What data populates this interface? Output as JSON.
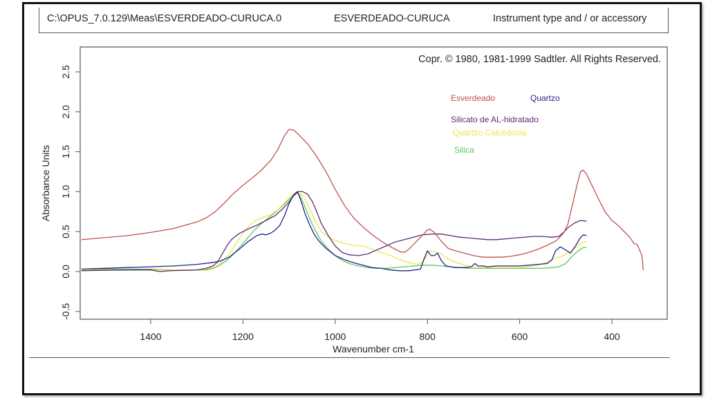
{
  "header": {
    "file_path": "C:\\OPUS_7.0.129\\Meas\\ESVERDEADO-CURUCA.0",
    "sample_name": "ESVERDEADO-CURUCA",
    "instrument": "Instrument type and / or accessory"
  },
  "chart_data": {
    "type": "line",
    "title": "",
    "copyright": "Copr. © 1980, 1981-1999 Sadtler.  All Rights Reserved.",
    "xlabel": "Wavenumber cm-1",
    "ylabel": "Absorbance Units",
    "xlim": [
      1550,
      330
    ],
    "ylim": [
      -0.6,
      2.8
    ],
    "x_reversed": true,
    "grid": false,
    "xticks": [
      1400,
      1200,
      1000,
      800,
      600,
      400
    ],
    "xtick_labels": [
      "1400",
      "1200",
      "1000",
      "800",
      "600",
      "400"
    ],
    "yticks": [
      -0.5,
      0.0,
      0.5,
      1.0,
      1.5,
      2.0,
      2.5
    ],
    "ytick_labels": [
      "-0.5",
      "0.0",
      "0.5",
      "1.0",
      "1.5",
      "2.0",
      "2.5"
    ],
    "legend_placement": "top-right",
    "series": [
      {
        "name": "Esverdeado",
        "color": "#c0504d",
        "points": [
          [
            1550,
            0.4
          ],
          [
            1450,
            0.45
          ],
          [
            1400,
            0.49
          ],
          [
            1350,
            0.54
          ],
          [
            1300,
            0.62
          ],
          [
            1280,
            0.67
          ],
          [
            1260,
            0.75
          ],
          [
            1240,
            0.86
          ],
          [
            1220,
            0.98
          ],
          [
            1200,
            1.08
          ],
          [
            1180,
            1.17
          ],
          [
            1160,
            1.27
          ],
          [
            1140,
            1.39
          ],
          [
            1125,
            1.52
          ],
          [
            1110,
            1.7
          ],
          [
            1100,
            1.78
          ],
          [
            1090,
            1.77
          ],
          [
            1080,
            1.72
          ],
          [
            1060,
            1.6
          ],
          [
            1040,
            1.44
          ],
          [
            1020,
            1.25
          ],
          [
            1000,
            1.03
          ],
          [
            980,
            0.83
          ],
          [
            960,
            0.67
          ],
          [
            940,
            0.56
          ],
          [
            920,
            0.46
          ],
          [
            900,
            0.38
          ],
          [
            880,
            0.31
          ],
          [
            860,
            0.25
          ],
          [
            850,
            0.24
          ],
          [
            840,
            0.28
          ],
          [
            820,
            0.4
          ],
          [
            800,
            0.52
          ],
          [
            795,
            0.53
          ],
          [
            785,
            0.49
          ],
          [
            770,
            0.38
          ],
          [
            755,
            0.29
          ],
          [
            740,
            0.26
          ],
          [
            720,
            0.23
          ],
          [
            700,
            0.2
          ],
          [
            680,
            0.18
          ],
          [
            660,
            0.18
          ],
          [
            640,
            0.18
          ],
          [
            620,
            0.19
          ],
          [
            600,
            0.21
          ],
          [
            580,
            0.24
          ],
          [
            560,
            0.28
          ],
          [
            540,
            0.33
          ],
          [
            520,
            0.39
          ],
          [
            505,
            0.48
          ],
          [
            495,
            0.6
          ],
          [
            485,
            0.85
          ],
          [
            475,
            1.1
          ],
          [
            468,
            1.25
          ],
          [
            462,
            1.27
          ],
          [
            455,
            1.22
          ],
          [
            445,
            1.1
          ],
          [
            430,
            0.92
          ],
          [
            415,
            0.75
          ],
          [
            400,
            0.64
          ],
          [
            385,
            0.57
          ],
          [
            370,
            0.48
          ],
          [
            360,
            0.42
          ],
          [
            352,
            0.35
          ],
          [
            345,
            0.34
          ],
          [
            340,
            0.27
          ],
          [
            335,
            0.2
          ],
          [
            332,
            0.02
          ]
        ]
      },
      {
        "name": "Quartzo",
        "color": "#1f1f8c",
        "points": [
          [
            1550,
            0.03
          ],
          [
            1450,
            0.05
          ],
          [
            1400,
            0.06
          ],
          [
            1350,
            0.07
          ],
          [
            1300,
            0.09
          ],
          [
            1270,
            0.11
          ],
          [
            1250,
            0.13
          ],
          [
            1230,
            0.18
          ],
          [
            1210,
            0.27
          ],
          [
            1190,
            0.37
          ],
          [
            1170,
            0.45
          ],
          [
            1160,
            0.47
          ],
          [
            1150,
            0.46
          ],
          [
            1140,
            0.48
          ],
          [
            1130,
            0.52
          ],
          [
            1120,
            0.58
          ],
          [
            1110,
            0.7
          ],
          [
            1100,
            0.85
          ],
          [
            1090,
            0.96
          ],
          [
            1082,
            1.0
          ],
          [
            1075,
            0.9
          ],
          [
            1065,
            0.72
          ],
          [
            1055,
            0.58
          ],
          [
            1045,
            0.46
          ],
          [
            1035,
            0.38
          ],
          [
            1020,
            0.29
          ],
          [
            1000,
            0.2
          ],
          [
            980,
            0.15
          ],
          [
            960,
            0.11
          ],
          [
            940,
            0.08
          ],
          [
            920,
            0.05
          ],
          [
            900,
            0.04
          ],
          [
            880,
            0.02
          ],
          [
            860,
            0.01
          ],
          [
            840,
            0.01
          ],
          [
            815,
            0.03
          ],
          [
            808,
            0.15
          ],
          [
            800,
            0.26
          ],
          [
            792,
            0.2
          ],
          [
            785,
            0.2
          ],
          [
            778,
            0.23
          ],
          [
            770,
            0.14
          ],
          [
            760,
            0.07
          ],
          [
            740,
            0.05
          ],
          [
            720,
            0.05
          ],
          [
            705,
            0.06
          ],
          [
            697,
            0.1
          ],
          [
            690,
            0.07
          ],
          [
            680,
            0.07
          ],
          [
            670,
            0.06
          ],
          [
            650,
            0.07
          ],
          [
            620,
            0.07
          ],
          [
            600,
            0.07
          ],
          [
            580,
            0.08
          ],
          [
            560,
            0.09
          ],
          [
            540,
            0.1
          ],
          [
            530,
            0.15
          ],
          [
            522,
            0.26
          ],
          [
            512,
            0.31
          ],
          [
            500,
            0.27
          ],
          [
            490,
            0.23
          ],
          [
            480,
            0.31
          ],
          [
            470,
            0.41
          ],
          [
            462,
            0.46
          ],
          [
            455,
            0.45
          ]
        ]
      },
      {
        "name": "Silicato de AL-hidratado",
        "color": "#5b2a6e",
        "points": [
          [
            1550,
            0.01
          ],
          [
            1450,
            0.02
          ],
          [
            1400,
            0.02
          ],
          [
            1380,
            0.0
          ],
          [
            1360,
            0.01
          ],
          [
            1300,
            0.02
          ],
          [
            1280,
            0.04
          ],
          [
            1265,
            0.07
          ],
          [
            1255,
            0.12
          ],
          [
            1245,
            0.22
          ],
          [
            1235,
            0.32
          ],
          [
            1225,
            0.4
          ],
          [
            1210,
            0.47
          ],
          [
            1190,
            0.53
          ],
          [
            1170,
            0.58
          ],
          [
            1150,
            0.64
          ],
          [
            1130,
            0.7
          ],
          [
            1115,
            0.78
          ],
          [
            1100,
            0.87
          ],
          [
            1090,
            0.95
          ],
          [
            1080,
            1.0
          ],
          [
            1070,
            1.0
          ],
          [
            1060,
            0.97
          ],
          [
            1050,
            0.88
          ],
          [
            1040,
            0.75
          ],
          [
            1030,
            0.6
          ],
          [
            1015,
            0.45
          ],
          [
            1000,
            0.32
          ],
          [
            985,
            0.24
          ],
          [
            970,
            0.21
          ],
          [
            950,
            0.2
          ],
          [
            930,
            0.22
          ],
          [
            910,
            0.27
          ],
          [
            890,
            0.32
          ],
          [
            870,
            0.37
          ],
          [
            850,
            0.4
          ],
          [
            830,
            0.43
          ],
          [
            810,
            0.46
          ],
          [
            790,
            0.47
          ],
          [
            770,
            0.47
          ],
          [
            750,
            0.45
          ],
          [
            730,
            0.43
          ],
          [
            710,
            0.42
          ],
          [
            690,
            0.41
          ],
          [
            670,
            0.4
          ],
          [
            650,
            0.4
          ],
          [
            630,
            0.41
          ],
          [
            610,
            0.42
          ],
          [
            590,
            0.43
          ],
          [
            570,
            0.44
          ],
          [
            550,
            0.44
          ],
          [
            530,
            0.43
          ],
          [
            515,
            0.44
          ],
          [
            505,
            0.49
          ],
          [
            495,
            0.55
          ],
          [
            480,
            0.61
          ],
          [
            468,
            0.64
          ],
          [
            455,
            0.63
          ]
        ]
      },
      {
        "name": "Quartzo-Calcedonia",
        "color": "#f2e34c",
        "points": [
          [
            1550,
            0.02
          ],
          [
            1450,
            0.02
          ],
          [
            1400,
            0.02
          ],
          [
            1350,
            0.02
          ],
          [
            1300,
            0.02
          ],
          [
            1280,
            0.03
          ],
          [
            1260,
            0.06
          ],
          [
            1245,
            0.12
          ],
          [
            1230,
            0.22
          ],
          [
            1215,
            0.35
          ],
          [
            1200,
            0.48
          ],
          [
            1185,
            0.58
          ],
          [
            1170,
            0.65
          ],
          [
            1155,
            0.68
          ],
          [
            1140,
            0.71
          ],
          [
            1125,
            0.77
          ],
          [
            1110,
            0.86
          ],
          [
            1095,
            0.95
          ],
          [
            1083,
            1.0
          ],
          [
            1070,
            0.95
          ],
          [
            1060,
            0.85
          ],
          [
            1050,
            0.72
          ],
          [
            1040,
            0.6
          ],
          [
            1030,
            0.5
          ],
          [
            1015,
            0.43
          ],
          [
            1000,
            0.39
          ],
          [
            980,
            0.35
          ],
          [
            960,
            0.33
          ],
          [
            940,
            0.32
          ],
          [
            920,
            0.28
          ],
          [
            900,
            0.24
          ],
          [
            880,
            0.2
          ],
          [
            860,
            0.15
          ],
          [
            840,
            0.11
          ],
          [
            820,
            0.09
          ],
          [
            810,
            0.12
          ],
          [
            800,
            0.21
          ],
          [
            795,
            0.26
          ],
          [
            785,
            0.25
          ],
          [
            770,
            0.22
          ],
          [
            755,
            0.16
          ],
          [
            740,
            0.12
          ],
          [
            720,
            0.08
          ],
          [
            700,
            0.06
          ],
          [
            680,
            0.05
          ],
          [
            660,
            0.05
          ],
          [
            640,
            0.05
          ],
          [
            620,
            0.05
          ],
          [
            600,
            0.05
          ],
          [
            580,
            0.06
          ],
          [
            560,
            0.08
          ],
          [
            540,
            0.12
          ],
          [
            520,
            0.17
          ],
          [
            505,
            0.2
          ],
          [
            490,
            0.25
          ],
          [
            475,
            0.32
          ],
          [
            462,
            0.37
          ],
          [
            455,
            0.38
          ]
        ]
      },
      {
        "name": "Silica",
        "color": "#5cc85c",
        "points": [
          [
            1550,
            0.03
          ],
          [
            1450,
            0.03
          ],
          [
            1400,
            0.03
          ],
          [
            1350,
            0.02
          ],
          [
            1300,
            0.02
          ],
          [
            1280,
            0.02
          ],
          [
            1265,
            0.04
          ],
          [
            1250,
            0.08
          ],
          [
            1235,
            0.14
          ],
          [
            1220,
            0.22
          ],
          [
            1205,
            0.32
          ],
          [
            1190,
            0.42
          ],
          [
            1175,
            0.52
          ],
          [
            1160,
            0.6
          ],
          [
            1145,
            0.67
          ],
          [
            1130,
            0.74
          ],
          [
            1115,
            0.82
          ],
          [
            1100,
            0.9
          ],
          [
            1088,
            0.97
          ],
          [
            1082,
            1.0
          ],
          [
            1072,
            0.9
          ],
          [
            1062,
            0.76
          ],
          [
            1052,
            0.62
          ],
          [
            1040,
            0.48
          ],
          [
            1030,
            0.38
          ],
          [
            1015,
            0.28
          ],
          [
            1000,
            0.2
          ],
          [
            985,
            0.14
          ],
          [
            970,
            0.1
          ],
          [
            950,
            0.07
          ],
          [
            930,
            0.05
          ],
          [
            910,
            0.04
          ],
          [
            890,
            0.04
          ],
          [
            870,
            0.05
          ],
          [
            850,
            0.06
          ],
          [
            830,
            0.07
          ],
          [
            810,
            0.08
          ],
          [
            790,
            0.08
          ],
          [
            770,
            0.07
          ],
          [
            750,
            0.06
          ],
          [
            730,
            0.05
          ],
          [
            710,
            0.04
          ],
          [
            690,
            0.04
          ],
          [
            670,
            0.04
          ],
          [
            650,
            0.04
          ],
          [
            630,
            0.04
          ],
          [
            610,
            0.04
          ],
          [
            590,
            0.04
          ],
          [
            570,
            0.04
          ],
          [
            550,
            0.04
          ],
          [
            530,
            0.05
          ],
          [
            515,
            0.06
          ],
          [
            500,
            0.1
          ],
          [
            488,
            0.18
          ],
          [
            475,
            0.25
          ],
          [
            462,
            0.3
          ],
          [
            455,
            0.3
          ]
        ]
      }
    ]
  }
}
